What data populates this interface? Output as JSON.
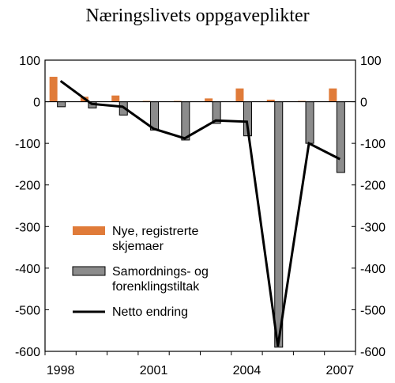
{
  "chart_data": {
    "type": "bar",
    "title": "Næringslivets oppgaveplikter",
    "xlabel": "",
    "ylabel": "",
    "x": [
      1998,
      1999,
      2000,
      2001,
      2002,
      2003,
      2004,
      2005,
      2006,
      2007
    ],
    "x_tick_labels": [
      "1998",
      "2001",
      "2004",
      "2007"
    ],
    "x_tick_values": [
      1998,
      2001,
      2004,
      2007
    ],
    "ylim": [
      -600,
      100
    ],
    "y_ticks": [
      100,
      0,
      -100,
      -200,
      -300,
      -400,
      -500,
      -600
    ],
    "y_tick_labels": [
      "100",
      "0",
      "-100",
      "-200",
      "-300",
      "-400",
      "-500",
      "-600"
    ],
    "secondary_y_axis": true,
    "grid": false,
    "legend_position": "left-middle",
    "series": [
      {
        "name": "Nye, registrerte skjemaer",
        "legend_lines": [
          "Nye, registrerte",
          "skjemaer"
        ],
        "type": "bar",
        "color": "#e07b39",
        "values": [
          60,
          12,
          15,
          2,
          2,
          8,
          32,
          5,
          2,
          32
        ]
      },
      {
        "name": "Samordnings- og forenklingstiltak",
        "legend_lines": [
          "Samordnings- og",
          "forenklingstiltak"
        ],
        "type": "bar",
        "color": "#8c8c8c",
        "values": [
          -12,
          -15,
          -32,
          -68,
          -92,
          -52,
          -82,
          -590,
          -100,
          -170
        ]
      },
      {
        "name": "Netto endring",
        "legend_lines": [
          "Netto endring"
        ],
        "type": "line",
        "color": "#000000",
        "values": [
          50,
          -5,
          -12,
          -65,
          -88,
          -45,
          -48,
          -588,
          -100,
          -138
        ]
      }
    ]
  }
}
